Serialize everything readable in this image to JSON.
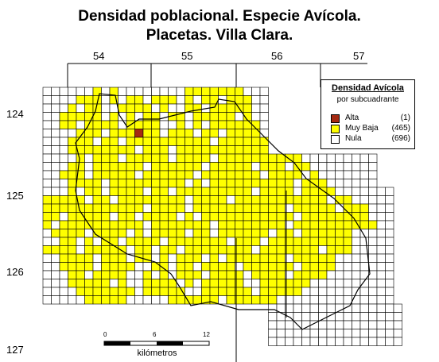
{
  "title": {
    "line1": "Densidad poblacional. Especie Avícola.",
    "line2": "Placetas. Villa Clara."
  },
  "x_labels": [
    "54",
    "55",
    "56",
    "57"
  ],
  "y_labels": [
    "124",
    "125",
    "126",
    "127"
  ],
  "legend": {
    "title": "Densidad Avícola",
    "subtitle": "por subcuadrante",
    "items": [
      {
        "label": "Alta",
        "count": "(1)",
        "color": "#a52a12"
      },
      {
        "label": "Muy Baja",
        "count": "(465)",
        "color": "#ffff00"
      },
      {
        "label": "Nula",
        "count": "(696)",
        "color": "#ffffff"
      }
    ]
  },
  "scale": {
    "ticks": [
      "0",
      "6",
      "12"
    ],
    "unit": "kilómetros"
  },
  "colors": {
    "grid_line": "#000000",
    "muy_baja": "#ffff00",
    "alta": "#a52a12",
    "boundary": "#000000"
  }
}
